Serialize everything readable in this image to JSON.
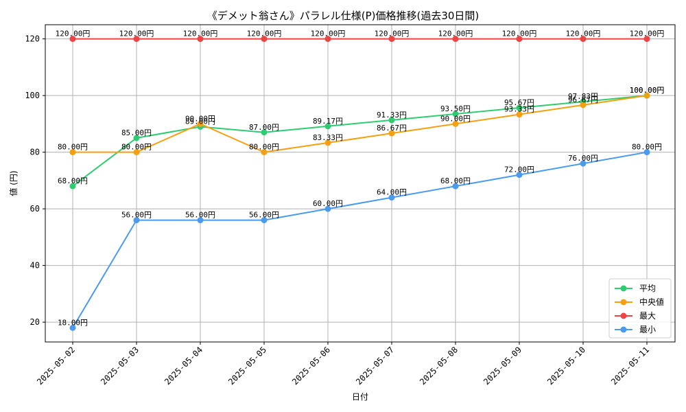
{
  "chart_data": {
    "type": "line",
    "title": "《デメット翁さん》パラレル仕様(P)価格推移(過去30日間)",
    "xlabel": "日付",
    "ylabel": "値 (円)",
    "unit_suffix": "円",
    "categories": [
      "2025-05-02",
      "2025-05-03",
      "2025-05-04",
      "2025-05-05",
      "2025-05-06",
      "2025-05-07",
      "2025-05-08",
      "2025-05-09",
      "2025-05-10",
      "2025-05-11"
    ],
    "ylim": [
      13,
      125
    ],
    "yticks": [
      20,
      40,
      60,
      80,
      100,
      120
    ],
    "grid": true,
    "legend_position": "lower-right",
    "series": [
      {
        "name": "平均",
        "color": "#2ecc71",
        "values": [
          68.0,
          85.0,
          89.0,
          87.0,
          89.17,
          91.33,
          93.5,
          95.67,
          97.83,
          100.0
        ]
      },
      {
        "name": "中央値",
        "color": "#f5a00f",
        "values": [
          80.0,
          80.0,
          90.0,
          80.0,
          83.33,
          86.67,
          90.0,
          93.33,
          96.67,
          100.0
        ]
      },
      {
        "name": "最大",
        "color": "#ef4444",
        "values": [
          120.0,
          120.0,
          120.0,
          120.0,
          120.0,
          120.0,
          120.0,
          120.0,
          120.0,
          120.0
        ]
      },
      {
        "name": "最小",
        "color": "#4a9af0",
        "values": [
          18.0,
          56.0,
          56.0,
          56.0,
          60.0,
          64.0,
          68.0,
          72.0,
          76.0,
          80.0
        ]
      }
    ]
  }
}
